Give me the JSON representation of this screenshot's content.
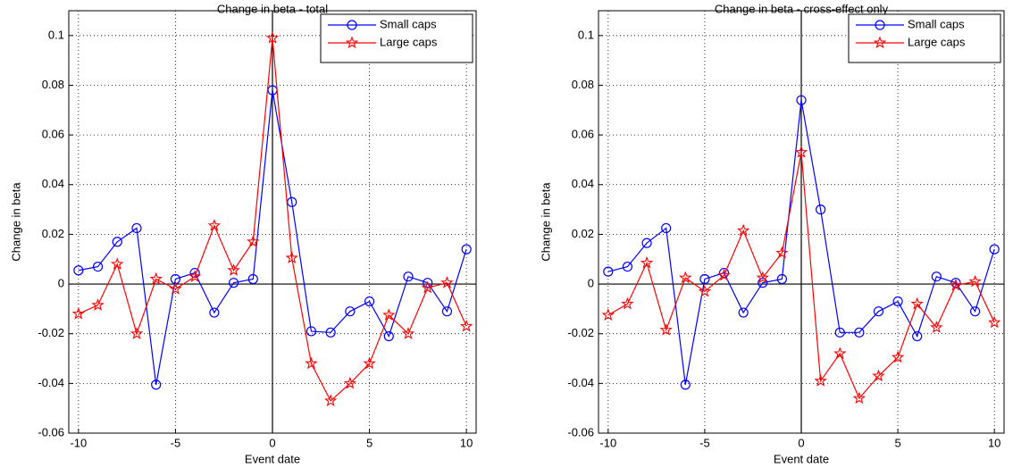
{
  "chart_data": [
    {
      "type": "line",
      "title": "Change in beta - total",
      "xlabel": "Event date",
      "ylabel": "Change in beta",
      "x": [
        -10,
        -9,
        -8,
        -7,
        -6,
        -5,
        -4,
        -3,
        -2,
        -1,
        0,
        1,
        2,
        3,
        4,
        5,
        6,
        7,
        8,
        9,
        10
      ],
      "series": [
        {
          "name": "Small caps",
          "color": "#0000ff",
          "marker": "o",
          "values": [
            0.0055,
            0.007,
            0.017,
            0.0225,
            -0.0405,
            0.002,
            0.0045,
            -0.0115,
            0.0005,
            0.002,
            0.078,
            0.033,
            -0.019,
            -0.0195,
            -0.011,
            -0.007,
            -0.021,
            0.003,
            0.0005,
            -0.011,
            0.014
          ]
        },
        {
          "name": "Large caps",
          "color": "#ff0000",
          "marker": "pentagram",
          "values": [
            -0.012,
            -0.0085,
            0.008,
            -0.02,
            0.002,
            -0.002,
            0.003,
            0.0235,
            0.0055,
            0.017,
            0.099,
            0.0105,
            -0.032,
            -0.047,
            -0.04,
            -0.032,
            -0.0125,
            -0.02,
            -0.0015,
            0.0005,
            -0.017
          ]
        }
      ],
      "xlim": [
        -10.5,
        10.5
      ],
      "ylim": [
        -0.06,
        0.11
      ],
      "xticks": [
        -10,
        -5,
        0,
        5,
        10
      ],
      "yticks": [
        -0.06,
        -0.04,
        -0.02,
        0,
        0.02,
        0.04,
        0.06,
        0.08,
        0.1
      ],
      "grid": true,
      "zero_lines": true,
      "legend": "top-right"
    },
    {
      "type": "line",
      "title": "Change in beta - cross-effect only",
      "xlabel": "Event date",
      "ylabel": "Change in beta",
      "x": [
        -10,
        -9,
        -8,
        -7,
        -6,
        -5,
        -4,
        -3,
        -2,
        -1,
        0,
        1,
        2,
        3,
        4,
        5,
        6,
        7,
        8,
        9,
        10
      ],
      "series": [
        {
          "name": "Small caps",
          "color": "#0000ff",
          "marker": "o",
          "values": [
            0.005,
            0.007,
            0.0165,
            0.0225,
            -0.0405,
            0.002,
            0.0045,
            -0.0115,
            0.0005,
            0.002,
            0.074,
            0.03,
            -0.0195,
            -0.0195,
            -0.011,
            -0.007,
            -0.021,
            0.003,
            0.0005,
            -0.011,
            0.014
          ]
        },
        {
          "name": "Large caps",
          "color": "#ff0000",
          "marker": "pentagram",
          "values": [
            -0.0125,
            -0.008,
            0.0085,
            -0.0185,
            0.0025,
            -0.003,
            0.0035,
            0.0215,
            0.0025,
            0.0125,
            0.053,
            -0.039,
            -0.028,
            -0.046,
            -0.037,
            -0.0295,
            -0.008,
            -0.0175,
            -0.0005,
            0.001,
            -0.0155
          ]
        }
      ],
      "xlim": [
        -10.5,
        10.5
      ],
      "ylim": [
        -0.06,
        0.11
      ],
      "xticks": [
        -10,
        -5,
        0,
        5,
        10
      ],
      "yticks": [
        -0.06,
        -0.04,
        -0.02,
        0,
        0.02,
        0.04,
        0.06,
        0.08,
        0.1
      ],
      "grid": true,
      "zero_lines": true,
      "legend": "top-right"
    }
  ]
}
